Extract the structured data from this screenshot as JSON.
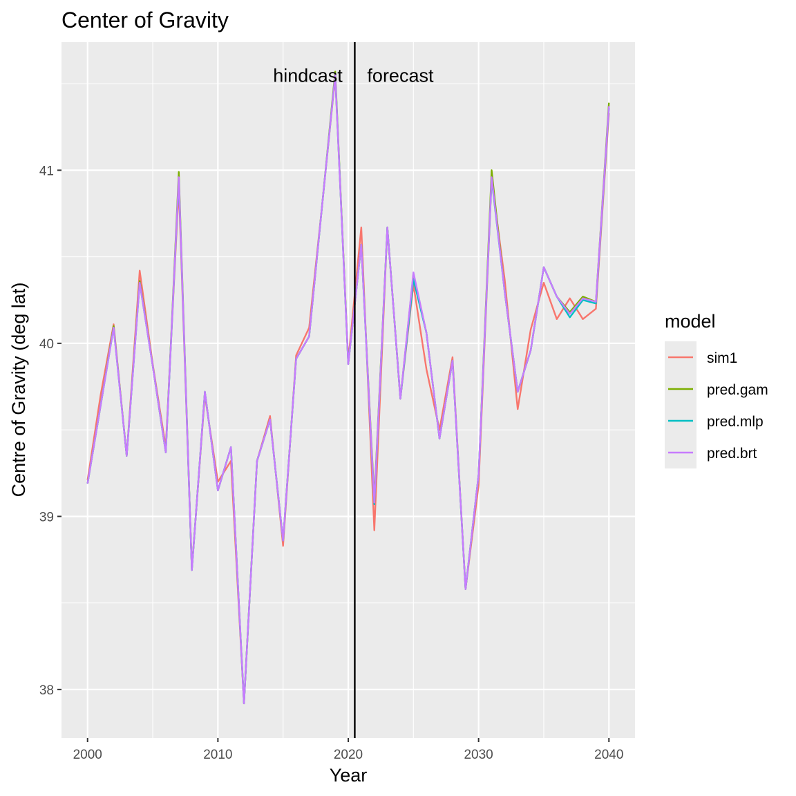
{
  "chart_data": {
    "type": "line",
    "title": "Center of Gravity",
    "xlabel": "Year",
    "ylabel": "Centre of Gravity (deg lat)",
    "xlim": [
      1998,
      2042
    ],
    "ylim": [
      37.72,
      41.74
    ],
    "x_ticks": [
      2000,
      2010,
      2020,
      2030,
      2040
    ],
    "y_ticks": [
      38,
      39,
      40,
      41
    ],
    "grid": true,
    "legend": {
      "title": "model",
      "position": "right"
    },
    "annotations": [
      {
        "text": "hindcast",
        "x": 2016.9,
        "y": 41.55
      },
      {
        "text": "forecast",
        "x": 2024.0,
        "y": 41.55
      }
    ],
    "vline": {
      "x": 2020.5
    },
    "x": [
      2000,
      2001,
      2002,
      2003,
      2004,
      2005,
      2006,
      2007,
      2008,
      2009,
      2010,
      2011,
      2012,
      2013,
      2014,
      2015,
      2016,
      2017,
      2018,
      2019,
      2020,
      2021,
      2022,
      2023,
      2024,
      2025,
      2026,
      2027,
      2028,
      2029,
      2030,
      2031,
      2032,
      2033,
      2034,
      2035,
      2036,
      2037,
      2038,
      2039,
      2040
    ],
    "series": [
      {
        "name": "sim1",
        "color": "#F8766D",
        "values": [
          39.21,
          39.7,
          40.11,
          39.35,
          40.42,
          39.88,
          39.4,
          40.9,
          38.7,
          39.7,
          39.2,
          39.32,
          37.92,
          39.32,
          39.58,
          38.83,
          39.93,
          40.09,
          40.8,
          41.54,
          39.9,
          40.67,
          38.92,
          40.67,
          39.68,
          40.34,
          39.85,
          39.5,
          39.92,
          38.58,
          39.18,
          40.95,
          40.37,
          39.62,
          40.08,
          40.35,
          40.14,
          40.26,
          40.14,
          40.2,
          41.33
        ]
      },
      {
        "name": "pred.gam",
        "color": "#7CAE00",
        "values": [
          39.19,
          39.64,
          40.1,
          39.35,
          40.36,
          39.87,
          39.37,
          40.99,
          38.69,
          39.72,
          39.15,
          39.4,
          37.92,
          39.32,
          39.56,
          38.86,
          39.91,
          40.04,
          40.8,
          41.57,
          39.88,
          40.57,
          39.1,
          40.67,
          39.68,
          40.4,
          40.06,
          39.45,
          39.9,
          38.58,
          39.24,
          41.0,
          40.3,
          39.72,
          39.96,
          40.44,
          40.27,
          40.18,
          40.27,
          40.24,
          41.39
        ]
      },
      {
        "name": "pred.mlp",
        "color": "#00BFC4",
        "values": [
          39.19,
          39.64,
          40.09,
          39.35,
          40.35,
          39.87,
          39.37,
          40.95,
          38.69,
          39.72,
          39.15,
          39.4,
          37.92,
          39.32,
          39.56,
          38.86,
          39.91,
          40.04,
          40.8,
          41.55,
          39.88,
          40.57,
          39.07,
          40.67,
          39.68,
          40.37,
          40.06,
          39.45,
          39.9,
          38.58,
          39.24,
          40.95,
          40.3,
          39.72,
          39.96,
          40.44,
          40.27,
          40.15,
          40.25,
          40.23,
          41.36
        ]
      },
      {
        "name": "pred.brt",
        "color": "#C77CFF",
        "values": [
          39.19,
          39.64,
          40.09,
          39.35,
          40.35,
          39.87,
          39.37,
          40.96,
          38.69,
          39.72,
          39.15,
          39.4,
          37.92,
          39.32,
          39.56,
          38.86,
          39.91,
          40.04,
          40.8,
          41.55,
          39.88,
          40.57,
          39.08,
          40.67,
          39.68,
          40.41,
          40.06,
          39.45,
          39.9,
          38.58,
          39.24,
          40.96,
          40.3,
          39.72,
          39.96,
          40.44,
          40.27,
          40.17,
          40.26,
          40.24,
          41.37
        ]
      }
    ]
  }
}
